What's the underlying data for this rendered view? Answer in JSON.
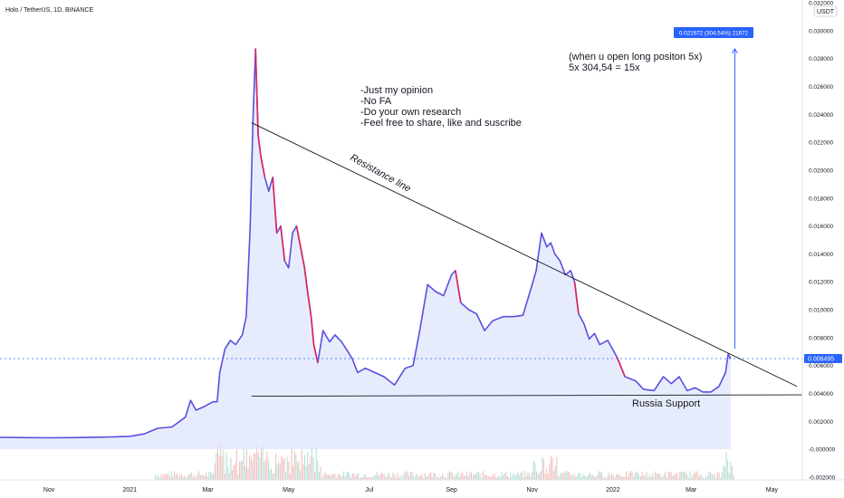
{
  "header": {
    "title": "Holo / TetherUS, 1D, BINANCE"
  },
  "price_axis": {
    "currency": "USDT",
    "ticks": [
      "0.032000",
      "0.030000",
      "0.028000",
      "0.026000",
      "0.024000",
      "0.022000",
      "0.020000",
      "0.018000",
      "0.016000",
      "0.014000",
      "0.012000",
      "0.010000",
      "0.008000",
      "0.006000",
      "0.004000",
      "0.002000",
      "-0.000000",
      "-0.002000"
    ],
    "last_price": "0.006495"
  },
  "time_axis": {
    "ticks": [
      "Nov",
      "2021",
      "Mar",
      "May",
      "Jul",
      "Sep",
      "Nov",
      "2022",
      "Mar",
      "May"
    ]
  },
  "annotations": {
    "notes": [
      "-Just my opinion",
      "-No FA",
      "-Do your own research",
      "-Feel free to share, like and suscribe"
    ],
    "long_note_line1": "(when u open long positon 5x)",
    "long_note_line2": "5x 304,54  = 15x",
    "resistance_label": "Resistance line",
    "support_label": "Russia Support",
    "measure_label": "0.021672 (304.54%) 21672"
  },
  "colors": {
    "line": "#5b4ee0",
    "down": "#e0245e",
    "fill": "#dfe6fb",
    "measure": "#2962ff",
    "last_price": "#2962ff",
    "trend": "#131722",
    "vol_up": "#b8e0d8",
    "vol_down": "#f5c1c1"
  },
  "chart_data": {
    "type": "line",
    "title": "Holo / TetherUS, 1D, BINANCE",
    "xlabel": "",
    "ylabel": "USDT",
    "ylim": [
      -0.0022,
      0.0322
    ],
    "x_range": [
      "2020-09-25",
      "2022-05-24"
    ],
    "grid": false,
    "series": [
      {
        "values": [
          [
            "2020-09-25",
            0.00085
          ],
          [
            "2020-10-15",
            0.00083
          ],
          [
            "2020-11-01",
            0.00082
          ],
          [
            "2020-11-20",
            0.00083
          ],
          [
            "2020-12-05",
            0.00086
          ],
          [
            "2020-12-20",
            0.00088
          ],
          [
            "2021-01-01",
            0.00092
          ],
          [
            "2021-01-12",
            0.0011
          ],
          [
            "2021-01-22",
            0.0015
          ],
          [
            "2021-02-02",
            0.0016
          ],
          [
            "2021-02-12",
            0.0023
          ],
          [
            "2021-02-16",
            0.0035
          ],
          [
            "2021-02-20",
            0.0028
          ],
          [
            "2021-02-25",
            0.003
          ],
          [
            "2021-03-01",
            0.0032
          ],
          [
            "2021-03-05",
            0.0034
          ],
          [
            "2021-03-08",
            0.0034
          ],
          [
            "2021-03-10",
            0.0055
          ],
          [
            "2021-03-14",
            0.0072
          ],
          [
            "2021-03-18",
            0.0078
          ],
          [
            "2021-03-22",
            0.0075
          ],
          [
            "2021-03-27",
            0.0082
          ],
          [
            "2021-03-30",
            0.0095
          ],
          [
            "2021-04-02",
            0.016
          ],
          [
            "2021-04-04",
            0.0235
          ],
          [
            "2021-04-06",
            0.0287
          ],
          [
            "2021-04-08",
            0.0225
          ],
          [
            "2021-04-10",
            0.021
          ],
          [
            "2021-04-13",
            0.0195
          ],
          [
            "2021-04-16",
            0.0185
          ],
          [
            "2021-04-19",
            0.0195
          ],
          [
            "2021-04-22",
            0.0155
          ],
          [
            "2021-04-25",
            0.016
          ],
          [
            "2021-04-28",
            0.0135
          ],
          [
            "2021-05-01",
            0.013
          ],
          [
            "2021-05-04",
            0.0155
          ],
          [
            "2021-05-07",
            0.016
          ],
          [
            "2021-05-10",
            0.0145
          ],
          [
            "2021-05-13",
            0.013
          ],
          [
            "2021-05-15",
            0.0115
          ],
          [
            "2021-05-18",
            0.0095
          ],
          [
            "2021-05-20",
            0.0075
          ],
          [
            "2021-05-23",
            0.0062
          ],
          [
            "2021-05-27",
            0.0085
          ],
          [
            "2021-06-01",
            0.0077
          ],
          [
            "2021-06-05",
            0.0082
          ],
          [
            "2021-06-10",
            0.0077
          ],
          [
            "2021-06-14",
            0.0071
          ],
          [
            "2021-06-18",
            0.0065
          ],
          [
            "2021-06-22",
            0.0055
          ],
          [
            "2021-06-28",
            0.0058
          ],
          [
            "2021-07-05",
            0.0055
          ],
          [
            "2021-07-12",
            0.0052
          ],
          [
            "2021-07-20",
            0.0046
          ],
          [
            "2021-07-28",
            0.0058
          ],
          [
            "2021-08-03",
            0.006
          ],
          [
            "2021-08-08",
            0.0085
          ],
          [
            "2021-08-14",
            0.0118
          ],
          [
            "2021-08-20",
            0.0113
          ],
          [
            "2021-08-26",
            0.011
          ],
          [
            "2021-09-01",
            0.0125
          ],
          [
            "2021-09-04",
            0.0128
          ],
          [
            "2021-09-08",
            0.0105
          ],
          [
            "2021-09-14",
            0.01
          ],
          [
            "2021-09-20",
            0.0097
          ],
          [
            "2021-09-26",
            0.0085
          ],
          [
            "2021-10-02",
            0.0092
          ],
          [
            "2021-10-10",
            0.0095
          ],
          [
            "2021-10-18",
            0.0095
          ],
          [
            "2021-10-25",
            0.0096
          ],
          [
            "2021-10-31",
            0.0115
          ],
          [
            "2021-11-04",
            0.0128
          ],
          [
            "2021-11-08",
            0.0155
          ],
          [
            "2021-11-12",
            0.0145
          ],
          [
            "2021-11-15",
            0.0148
          ],
          [
            "2021-11-18",
            0.014
          ],
          [
            "2021-11-22",
            0.0135
          ],
          [
            "2021-11-26",
            0.0125
          ],
          [
            "2021-11-30",
            0.0128
          ],
          [
            "2021-12-03",
            0.012
          ],
          [
            "2021-12-06",
            0.0097
          ],
          [
            "2021-12-10",
            0.009
          ],
          [
            "2021-12-14",
            0.0079
          ],
          [
            "2021-12-18",
            0.0083
          ],
          [
            "2021-12-22",
            0.0075
          ],
          [
            "2021-12-28",
            0.0078
          ],
          [
            "2022-01-04",
            0.0066
          ],
          [
            "2022-01-10",
            0.0052
          ],
          [
            "2022-01-18",
            0.0049
          ],
          [
            "2022-01-24",
            0.0043
          ],
          [
            "2022-02-01",
            0.0042
          ],
          [
            "2022-02-08",
            0.0052
          ],
          [
            "2022-02-14",
            0.0047
          ],
          [
            "2022-02-20",
            0.0052
          ],
          [
            "2022-02-26",
            0.0042
          ],
          [
            "2022-03-04",
            0.0044
          ],
          [
            "2022-03-10",
            0.0041
          ],
          [
            "2022-03-16",
            0.0041
          ],
          [
            "2022-03-22",
            0.0045
          ],
          [
            "2022-03-27",
            0.0055
          ],
          [
            "2022-03-29",
            0.0068
          ],
          [
            "2022-03-31",
            0.0065
          ]
        ]
      }
    ],
    "drawings": {
      "resistance_line": [
        [
          "2021-04-03",
          0.0234
        ],
        [
          "2022-05-20",
          0.0045
        ]
      ],
      "support_line": [
        [
          "2021-04-03",
          0.0038
        ],
        [
          "2022-05-24",
          0.0039
        ]
      ],
      "measure_arrow": [
        [
          "2022-04-03",
          0.0072
        ],
        [
          "2022-04-03",
          0.0287
        ]
      ]
    }
  }
}
